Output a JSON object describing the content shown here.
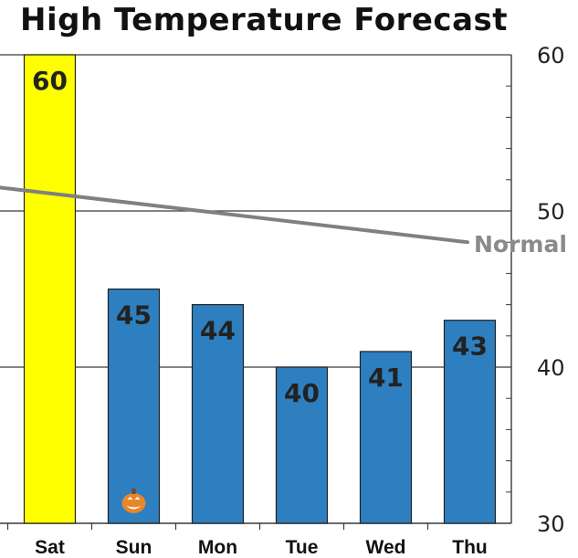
{
  "chart_data": {
    "type": "bar",
    "title": "High Temperature Forecast",
    "categories": [
      "Sat",
      "Sun",
      "Mon",
      "Tue",
      "Wed",
      "Thu"
    ],
    "values": [
      60,
      45,
      44,
      40,
      41,
      43
    ],
    "value_labels": [
      "60",
      "45",
      "44",
      "40",
      "41",
      "43"
    ],
    "bar_colors": [
      "#ffff00",
      "#2e7fbf",
      "#2e7fbf",
      "#2e7fbf",
      "#2e7fbf",
      "#2e7fbf"
    ],
    "ylim": [
      30,
      60
    ],
    "y_ticks": [
      30,
      40,
      50,
      60
    ],
    "y_tick_labels": [
      "30",
      "40",
      "50",
      "60"
    ],
    "y_axis_side": "right",
    "grid": true,
    "reference_line": {
      "label": "Normal",
      "start_value": 51.5,
      "end_value": 48,
      "color": "#808080"
    },
    "annotations": [
      {
        "category": "Sun",
        "icon": "pumpkin-icon",
        "color": "#e8862a"
      }
    ]
  }
}
